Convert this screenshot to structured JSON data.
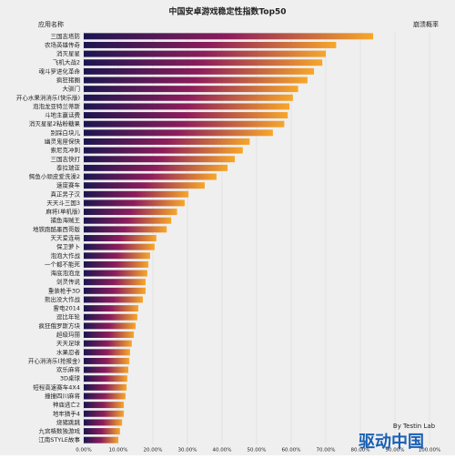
{
  "chart_data": {
    "type": "hbar",
    "title": "中国安卓游戏稳定性指数Top50",
    "y_axis_label": "应用名称",
    "x_axis_label": "崩溃概率",
    "watermark": "驱动中国",
    "watermark_sub": "By Testin Lab",
    "categories": [
      "三国志塔防",
      "农场英雄传奇",
      "消灭星星",
      "飞机大战2",
      "魂斗罗进化革命",
      "疯狂猪圈",
      "大驯门",
      "开心水果消消乐(快乐版)",
      "泡泡龙亚特兰蒂斯",
      "斗地主赢话费",
      "消灭星星2粘粉糖果",
      "别踩白块儿",
      "幽灵鬼屋保快",
      "索尼克冲刺",
      "三国志快打",
      "泰拉瑞亚",
      "鳄鱼小顽皮爱洗澡2",
      "速度赛车",
      "真正男子汉",
      "天天斗三国3",
      "麻将(单机版)",
      "捕鱼海贼王",
      "地铁跑酷墨西哥版",
      "天天爱连萌",
      "保卫萝卜",
      "泡泡大作战",
      "一个都不能死",
      "海底泡泡龙",
      "剑灵传说",
      "重装枪手3D",
      "熊出没大作战",
      "雷电2014",
      "逗比年轮",
      "疯狂俄罗斯方块",
      "超级玛丽",
      "天天足球",
      "水果忍者",
      "开心消消乐(抢报金)",
      "欢乐麻将",
      "3D桌球",
      "短程高速赛车4X4",
      "撞撞四川麻将",
      "神庙逃亡2",
      "地牢猎手4",
      "烧猪跳跳",
      "九宫格数独游戏",
      "江南STYLE故事"
    ],
    "values": [
      83.7,
      73,
      70,
      69,
      66.6,
      64.7,
      62,
      60.5,
      59.5,
      59,
      58,
      54.7,
      48,
      46,
      43.7,
      41.6,
      38.4,
      35,
      30.3,
      29.2,
      27,
      25.3,
      24,
      21,
      20.5,
      19.2,
      18.7,
      18.4,
      17.9,
      17.9,
      17.1,
      15.8,
      15.5,
      15,
      14.5,
      13.9,
      13.4,
      13.2,
      12.9,
      12.6,
      12.4,
      12.1,
      11.6,
      11.6,
      11.1,
      10.5,
      10
    ],
    "colors": [
      "#1b1650",
      "#8e1d5c",
      "#f7a72a"
    ],
    "xlim": [
      0,
      100
    ],
    "xticks": [
      {
        "value": 0,
        "label": "0.00%"
      },
      {
        "value": 10,
        "label": "10.00%"
      },
      {
        "value": 20,
        "label": "20.00%"
      },
      {
        "value": 30,
        "label": "30.00%"
      },
      {
        "value": 40,
        "label": "40.00%"
      },
      {
        "value": 50,
        "label": "50.00%"
      },
      {
        "value": 60,
        "label": "60.00%"
      },
      {
        "value": 70,
        "label": "70.00%"
      },
      {
        "value": 80,
        "label": "80.00%"
      },
      {
        "value": 90,
        "label": "90.00%"
      },
      {
        "value": 100,
        "label": "100.00%"
      }
    ],
    "grid": true
  }
}
